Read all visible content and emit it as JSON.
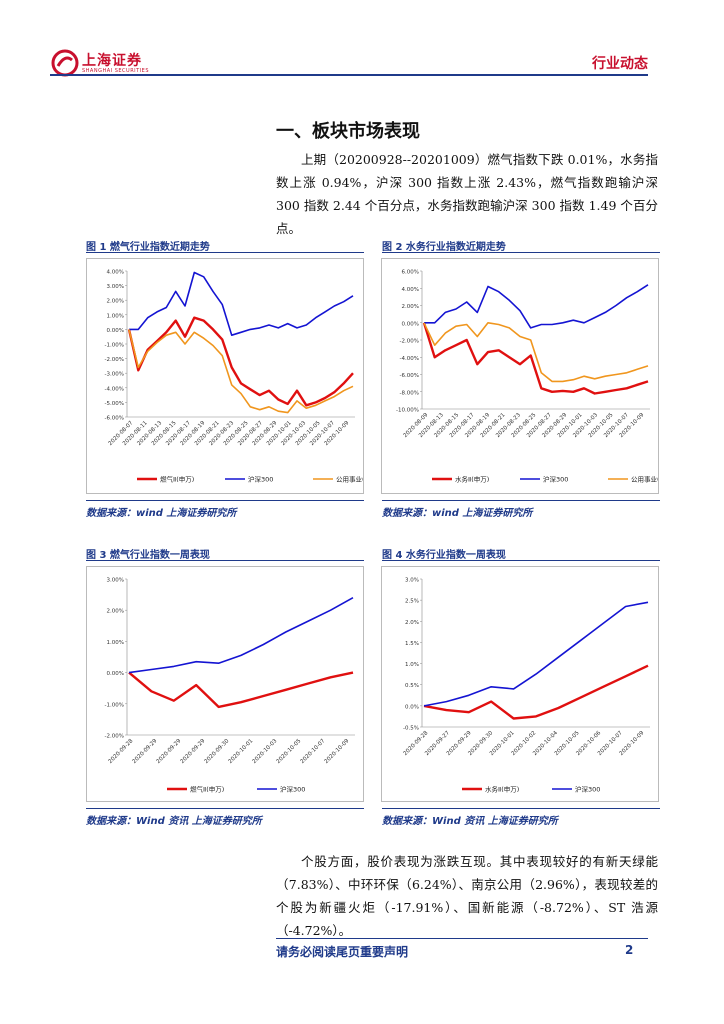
{
  "header": {
    "logo_text": "上海证券",
    "logo_sub": "SHANGHAI SECURITIES",
    "category": "行业动态"
  },
  "section": {
    "title": "一、板块市场表现"
  },
  "intro_paragraph": "上期（20200928--20201009）燃气指数下跌 0.01%，水务指数上涨 0.94%，沪深 300 指数上涨 2.43%，燃气指数跑输沪深 300 指数 2.44 个百分点，水务指数跑输沪深 300 指数 1.49 个百分点。",
  "colors": {
    "red": "#e01010",
    "blue": "#1414d2",
    "orange": "#f0961e",
    "brand_blue": "#1f3a8a",
    "brand_red": "#c8102e"
  },
  "figures": [
    {
      "title": "图 1 燃气行业指数近期走势",
      "source": "数据来源：wind 上海证券研究所"
    },
    {
      "title": "图 2 水务行业指数近期走势",
      "source": "数据来源：wind 上海证券研究所"
    },
    {
      "title": "图 3 燃气行业指数一周表现",
      "source": "数据来源：Wind 资讯 上海证券研究所"
    },
    {
      "title": "图 4 水务行业指数一周表现",
      "source": "数据来源：Wind 资讯 上海证券研究所"
    }
  ],
  "chart_data": [
    {
      "type": "line",
      "title": "图 1 燃气行业指数近期走势",
      "ylim": [
        -6,
        4
      ],
      "yticks": [
        "4.00%",
        "3.00%",
        "2.00%",
        "1.00%",
        "0.00%",
        "-1.00%",
        "-2.00%",
        "-3.00%",
        "-4.00%",
        "-5.00%",
        "-6.00%"
      ],
      "x_tick_labels": [
        "2020-08-07",
        "2020-08-11",
        "2020-08-13",
        "2020-08-15",
        "2020-08-17",
        "2020-08-19",
        "2020-08-21",
        "2020-08-23",
        "2020-08-25",
        "2020-08-27",
        "2020-08-29",
        "2020-10-01",
        "2020-10-03",
        "2020-10-05",
        "2020-10-07",
        "2020-10-09"
      ],
      "series": [
        {
          "name": "燃气Ⅱ(申万)",
          "color": "red",
          "values": [
            0.0,
            -2.8,
            -1.4,
            -0.8,
            -0.2,
            0.6,
            -0.5,
            0.8,
            0.6,
            0.0,
            -0.7,
            -2.6,
            -3.7,
            -4.1,
            -4.5,
            -4.2,
            -4.8,
            -5.1,
            -4.2,
            -5.2,
            -5.0,
            -4.7,
            -4.3,
            -3.7,
            -3.0
          ]
        },
        {
          "name": "沪深300",
          "color": "blue",
          "values": [
            0.0,
            0.0,
            0.8,
            1.2,
            1.5,
            2.6,
            1.6,
            3.9,
            3.6,
            2.6,
            1.7,
            -0.4,
            -0.2,
            0.0,
            0.1,
            0.3,
            0.1,
            0.4,
            0.1,
            0.3,
            0.8,
            1.2,
            1.6,
            1.9,
            2.3
          ]
        },
        {
          "name": "公用事业(申万)",
          "color": "orange",
          "values": [
            0.0,
            -2.6,
            -1.5,
            -0.9,
            -0.4,
            -0.2,
            -1.0,
            -0.2,
            -0.6,
            -1.1,
            -1.8,
            -3.8,
            -4.4,
            -5.3,
            -5.5,
            -5.3,
            -5.6,
            -5.7,
            -4.9,
            -5.4,
            -5.2,
            -4.9,
            -4.6,
            -4.2,
            -3.9
          ]
        }
      ]
    },
    {
      "type": "line",
      "title": "图 2 水务行业指数近期走势",
      "ylim": [
        -10,
        6
      ],
      "yticks": [
        "6.00%",
        "4.00%",
        "2.00%",
        "0.00%",
        "-2.00%",
        "-4.00%",
        "-6.00%",
        "-8.00%",
        "-10.00%"
      ],
      "x_tick_labels": [
        "2020-08-09",
        "2020-08-13",
        "2020-08-15",
        "2020-08-17",
        "2020-08-19",
        "2020-08-21",
        "2020-08-23",
        "2020-08-25",
        "2020-08-27",
        "2020-08-29",
        "2020-10-01",
        "2020-10-03",
        "2020-10-05",
        "2020-10-07",
        "2020-10-09"
      ],
      "series": [
        {
          "name": "水务Ⅱ(申万)",
          "color": "red",
          "values": [
            0.0,
            -4.0,
            -3.2,
            -2.6,
            -2.0,
            -4.8,
            -3.4,
            -3.2,
            -4.0,
            -4.8,
            -3.8,
            -7.6,
            -8.0,
            -7.9,
            -8.0,
            -7.6,
            -8.2,
            -8.0,
            -7.8,
            -7.6,
            -7.2,
            -6.8
          ]
        },
        {
          "name": "沪深300",
          "color": "blue",
          "values": [
            0.0,
            0.0,
            1.2,
            1.6,
            2.4,
            1.2,
            4.2,
            3.6,
            2.6,
            1.4,
            -0.6,
            -0.2,
            -0.2,
            0.0,
            0.3,
            0.0,
            0.6,
            1.2,
            2.0,
            2.9,
            3.6,
            4.4
          ]
        },
        {
          "name": "公用事业(申万)",
          "color": "orange",
          "values": [
            0.0,
            -2.6,
            -1.2,
            -0.4,
            -0.2,
            -1.6,
            0.0,
            -0.2,
            -0.6,
            -1.6,
            -2.0,
            -5.8,
            -6.8,
            -6.8,
            -6.6,
            -6.2,
            -6.5,
            -6.2,
            -6.0,
            -5.8,
            -5.4,
            -5.0
          ]
        }
      ]
    },
    {
      "type": "line",
      "title": "图 3 燃气行业指数一周表现",
      "ylim": [
        -2.0,
        3.0
      ],
      "yticks": [
        "3.00%",
        "2.00%",
        "1.00%",
        "0.00%",
        "-1.00%",
        "-2.00%"
      ],
      "x_tick_labels": [
        "2020-09-28",
        "2020-09-29",
        "2020-09-29",
        "2020-09-29",
        "2020-09-30",
        "2020-10-01",
        "2020-10-03",
        "2020-10-05",
        "2020-10-07",
        "2020-10-09"
      ],
      "series": [
        {
          "name": "燃气Ⅱ(申万)",
          "color": "red",
          "values": [
            0.0,
            -0.6,
            -0.9,
            -0.4,
            -1.1,
            -0.95,
            -0.75,
            -0.55,
            -0.35,
            -0.15,
            0.0
          ]
        },
        {
          "name": "沪深300",
          "color": "blue",
          "values": [
            0.0,
            0.1,
            0.2,
            0.35,
            0.3,
            0.55,
            0.9,
            1.3,
            1.65,
            2.0,
            2.4
          ]
        }
      ]
    },
    {
      "type": "line",
      "title": "图 4 水务行业指数一周表现",
      "ylim": [
        -0.5,
        3.0
      ],
      "yticks": [
        "3.0%",
        "2.5%",
        "2.0%",
        "1.5%",
        "1.0%",
        "0.5%",
        "0.0%",
        "-0.5%"
      ],
      "x_tick_labels": [
        "2020-09-28",
        "2020-09-27",
        "2020-09-29",
        "2020-09-30",
        "2020-10-01",
        "2020-10-02",
        "2020-10-04",
        "2020-10-05",
        "2020-10-06",
        "2020-10-07",
        "2020-10-09"
      ],
      "series": [
        {
          "name": "水务Ⅱ(申万)",
          "color": "red",
          "values": [
            0.0,
            -0.1,
            -0.15,
            0.1,
            -0.3,
            -0.25,
            -0.05,
            0.2,
            0.45,
            0.7,
            0.95
          ]
        },
        {
          "name": "沪深300",
          "color": "blue",
          "values": [
            0.0,
            0.1,
            0.25,
            0.45,
            0.4,
            0.75,
            1.15,
            1.55,
            1.95,
            2.35,
            2.45
          ]
        }
      ]
    }
  ],
  "conclusion_paragraph": "个股方面，股价表现为涨跌互现。其中表现较好的有新天绿能（7.83%）、中环环保（6.24%）、南京公用（2.96%），表现较差的个股为新疆火炬（-17.91%）、国新能源（-8.72%）、ST 浩源（-4.72%）。",
  "footer": {
    "disclaimer": "请务必阅读尾页重要声明",
    "page": "2"
  }
}
